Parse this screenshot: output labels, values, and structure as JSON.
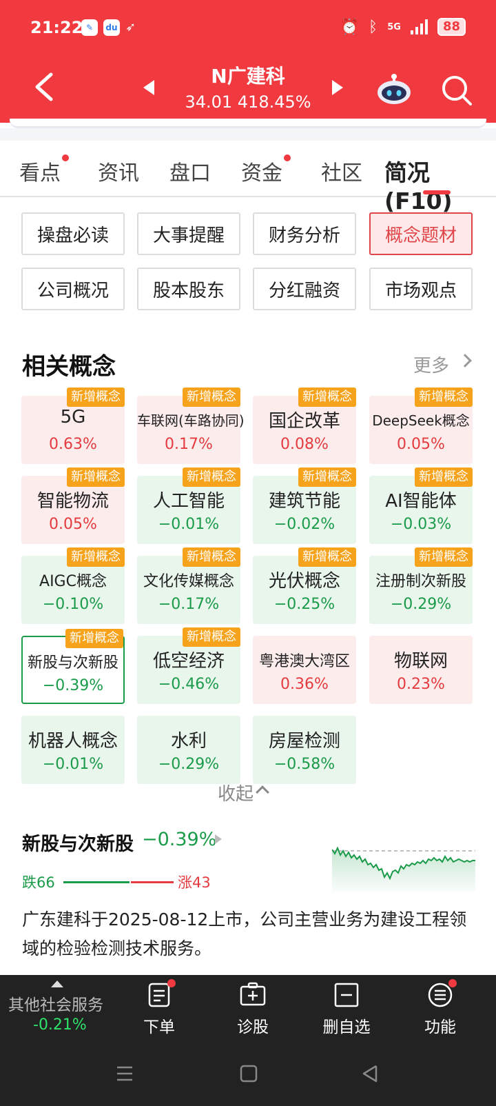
{
  "status": {
    "time": "21:22",
    "network": "5G",
    "battery": "88"
  },
  "header": {
    "stock_name": "N广建科",
    "price_line": "34.01 418.45%"
  },
  "tabs": [
    {
      "label": "看点",
      "dot": true
    },
    {
      "label": "资讯",
      "dot": false
    },
    {
      "label": "盘口",
      "dot": false
    },
    {
      "label": "资金",
      "dot": true
    },
    {
      "label": "社区",
      "dot": false
    },
    {
      "label": "简况(F10)",
      "dot": false,
      "active": true
    }
  ],
  "sub_buttons": [
    {
      "label": "操盘必读"
    },
    {
      "label": "大事提醒"
    },
    {
      "label": "财务分析"
    },
    {
      "label": "概念题材",
      "active": true
    },
    {
      "label": "公司概况"
    },
    {
      "label": "股本股东"
    },
    {
      "label": "分红融资"
    },
    {
      "label": "市场观点"
    }
  ],
  "concepts": {
    "title": "相关概念",
    "more": "更多",
    "collapse": "收起",
    "badge": "新增概念",
    "items": [
      {
        "name": "5G",
        "pct": "0.63%",
        "trend": "up",
        "badge": true
      },
      {
        "name": "车联网(车路协同)",
        "pct": "0.17%",
        "trend": "up",
        "badge": true
      },
      {
        "name": "国企改革",
        "pct": "0.08%",
        "trend": "up",
        "badge": true
      },
      {
        "name": "DeepSeek概念",
        "pct": "0.05%",
        "trend": "up",
        "badge": true
      },
      {
        "name": "智能物流",
        "pct": "0.05%",
        "trend": "up",
        "badge": true
      },
      {
        "name": "人工智能",
        "pct": "−0.01%",
        "trend": "down",
        "badge": true
      },
      {
        "name": "建筑节能",
        "pct": "−0.02%",
        "trend": "down",
        "badge": true
      },
      {
        "name": "AI智能体",
        "pct": "−0.03%",
        "trend": "down",
        "badge": true
      },
      {
        "name": "AIGC概念",
        "pct": "−0.10%",
        "trend": "down",
        "badge": true
      },
      {
        "name": "文化传媒概念",
        "pct": "−0.17%",
        "trend": "down",
        "badge": true
      },
      {
        "name": "光伏概念",
        "pct": "−0.25%",
        "trend": "down",
        "badge": true
      },
      {
        "name": "注册制次新股",
        "pct": "−0.29%",
        "trend": "down",
        "badge": true
      },
      {
        "name": "新股与次新股",
        "pct": "−0.39%",
        "trend": "down",
        "badge": true,
        "selected": true
      },
      {
        "name": "低空经济",
        "pct": "−0.46%",
        "trend": "down",
        "badge": true
      },
      {
        "name": "粤港澳大湾区",
        "pct": "0.36%",
        "trend": "up",
        "badge": false
      },
      {
        "name": "物联网",
        "pct": "0.23%",
        "trend": "up",
        "badge": false
      },
      {
        "name": "机器人概念",
        "pct": "−0.01%",
        "trend": "down",
        "badge": false
      },
      {
        "name": "水利",
        "pct": "−0.29%",
        "trend": "down",
        "badge": false
      },
      {
        "name": "房屋检测",
        "pct": "−0.58%",
        "trend": "down",
        "badge": false
      }
    ]
  },
  "feature": {
    "name": "新股与次新股",
    "pct": "−0.39%",
    "fall_label": "跌66",
    "rise_label": "涨43",
    "fall_count": 66,
    "rise_count": 43,
    "description": "广东建科于2025-08-12上市，公司主营业务为建设工程领域的检验检测技术服务。"
  },
  "bottom": {
    "sector_name": "其他社会服务",
    "sector_pct": "-0.21%",
    "items": [
      {
        "label": "下单",
        "icon": "order-icon",
        "dot": true
      },
      {
        "label": "诊股",
        "icon": "diagnose-icon",
        "dot": false
      },
      {
        "label": "删自选",
        "icon": "remove-watchlist-icon",
        "dot": false
      },
      {
        "label": "功能",
        "icon": "menu-icon",
        "dot": true
      }
    ]
  },
  "colors": {
    "header_red": "#f13a3f",
    "up_red": "#e33b3f",
    "down_green": "#1a9b4a",
    "badge_orange": "#f6a21a"
  }
}
